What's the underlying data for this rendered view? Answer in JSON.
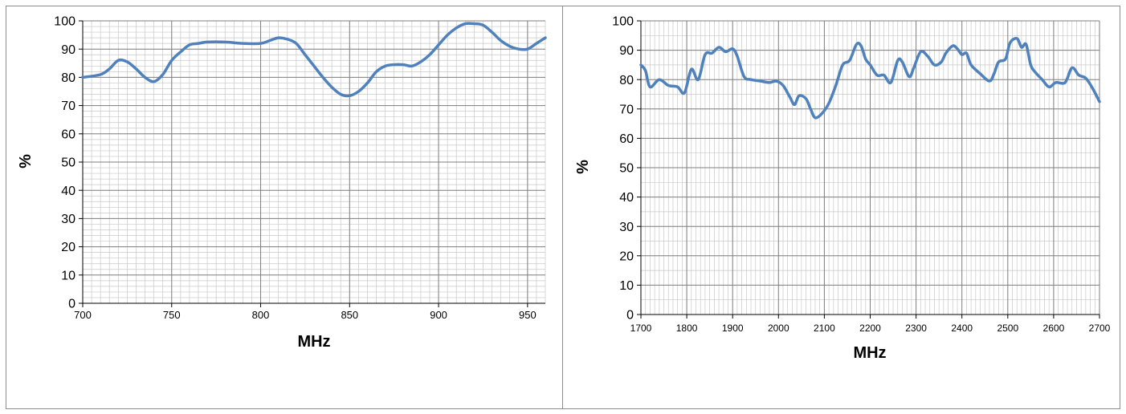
{
  "chart_data": [
    {
      "type": "line",
      "xlabel": "MHz",
      "ylabel": "%",
      "xlim": [
        700,
        960
      ],
      "ylim": [
        0,
        100
      ],
      "x_ticks": [
        "700",
        "750",
        "800",
        "850",
        "900",
        "950"
      ],
      "y_ticks": [
        "0",
        "10",
        "20",
        "30",
        "40",
        "50",
        "60",
        "70",
        "80",
        "90",
        "100"
      ],
      "grid": true,
      "color": "#4f81bd",
      "series": [
        {
          "x": [
            700,
            710,
            715,
            720,
            725,
            730,
            735,
            740,
            745,
            750,
            755,
            760,
            765,
            770,
            780,
            790,
            800,
            805,
            810,
            815,
            820,
            825,
            830,
            835,
            840,
            845,
            850,
            855,
            860,
            865,
            870,
            875,
            880,
            885,
            890,
            895,
            900,
            905,
            910,
            915,
            920,
            925,
            930,
            935,
            940,
            945,
            950,
            955,
            960
          ],
          "y": [
            80,
            81,
            83,
            86,
            85.5,
            83,
            80,
            78.5,
            81,
            86,
            89,
            91.5,
            92,
            92.5,
            92.5,
            92,
            92,
            93,
            94,
            93.5,
            92,
            88,
            84,
            80,
            76.5,
            74,
            73.5,
            75,
            78,
            82,
            84,
            84.5,
            84.5,
            84,
            85.5,
            88,
            91.5,
            95,
            97.5,
            99,
            99,
            98.5,
            96,
            93,
            91,
            90,
            90,
            92,
            94
          ]
        }
      ]
    },
    {
      "type": "line",
      "xlabel": "MHz",
      "ylabel": "%",
      "xlim": [
        1700,
        2700
      ],
      "ylim": [
        0,
        100
      ],
      "x_ticks": [
        "1700",
        "1800",
        "1900",
        "2000",
        "2100",
        "2200",
        "2300",
        "2400",
        "2500",
        "2600",
        "2700"
      ],
      "y_ticks": [
        "0",
        "10",
        "20",
        "30",
        "40",
        "50",
        "60",
        "70",
        "80",
        "90",
        "100"
      ],
      "grid": true,
      "color": "#4f81bd",
      "series": [
        {
          "x": [
            1700,
            1710,
            1720,
            1740,
            1760,
            1780,
            1795,
            1810,
            1825,
            1840,
            1855,
            1870,
            1885,
            1900,
            1910,
            1925,
            1940,
            1960,
            1980,
            1995,
            2010,
            2025,
            2035,
            2045,
            2060,
            2070,
            2080,
            2095,
            2110,
            2125,
            2140,
            2155,
            2170,
            2180,
            2190,
            2200,
            2215,
            2230,
            2245,
            2260,
            2270,
            2285,
            2295,
            2310,
            2325,
            2340,
            2355,
            2365,
            2380,
            2390,
            2400,
            2410,
            2420,
            2440,
            2460,
            2470,
            2480,
            2495,
            2505,
            2520,
            2530,
            2540,
            2550,
            2560,
            2575,
            2590,
            2605,
            2625,
            2640,
            2655,
            2670,
            2685,
            2700
          ],
          "y": [
            85,
            83,
            77.5,
            80,
            78,
            77.5,
            75.5,
            83.5,
            80,
            88.5,
            89,
            91,
            89.5,
            90.5,
            88,
            81,
            80,
            79.5,
            79,
            79.5,
            78,
            74,
            71.5,
            74.5,
            73.5,
            70,
            67,
            68.5,
            72,
            78,
            85,
            86.5,
            92,
            91.5,
            87,
            85,
            81.5,
            81.5,
            79,
            86.5,
            86,
            81,
            84,
            89.5,
            88,
            85,
            86,
            89,
            91.5,
            90.5,
            88.5,
            89,
            85,
            82,
            79.5,
            82,
            86,
            87,
            92.5,
            94,
            91,
            92,
            85,
            82.5,
            80,
            77.5,
            79,
            79,
            84,
            81.5,
            80.5,
            77,
            72.5
          ]
        }
      ]
    }
  ]
}
